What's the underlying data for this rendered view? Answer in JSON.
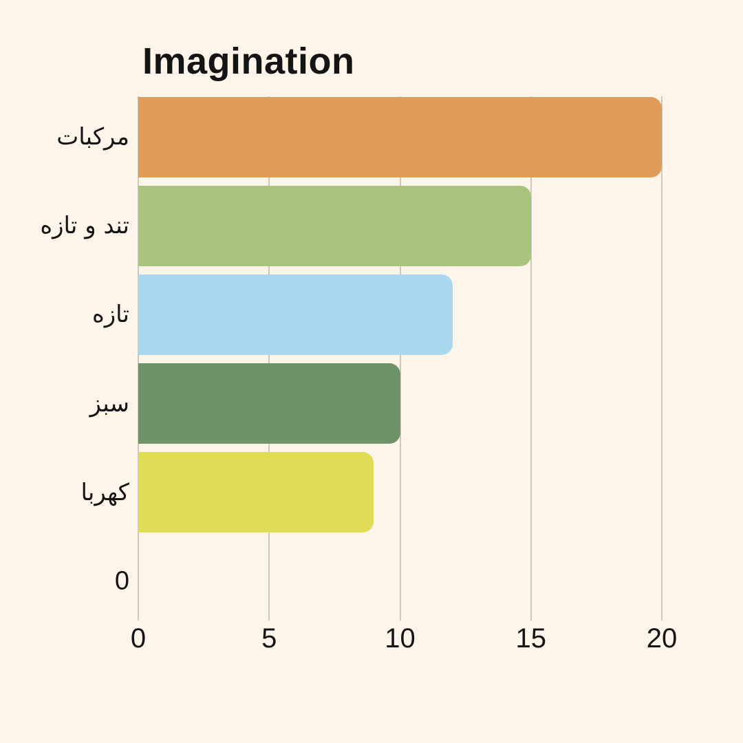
{
  "page": {
    "background_color": "#FDF4EA",
    "text_color": "#141414",
    "gridline_color": "#CDC7BE"
  },
  "chart_data": {
    "type": "bar",
    "orientation": "horizontal",
    "title": "Imagination",
    "categories": [
      "مركبات",
      "تند و تازه",
      "تازه",
      "سبز",
      "كهربا",
      "0"
    ],
    "values": [
      20,
      15,
      12,
      10,
      9,
      0
    ],
    "bar_colors": [
      "#E09D59",
      "#A9C37F",
      "#A9D8EE",
      "#6F9268",
      "#E0DC55",
      null
    ],
    "x_ticks": [
      0,
      5,
      10,
      15,
      20
    ],
    "xlim": [
      0,
      20
    ],
    "xlabel": "",
    "ylabel": "",
    "grid": "vertical-gridlines",
    "legend": "none"
  }
}
